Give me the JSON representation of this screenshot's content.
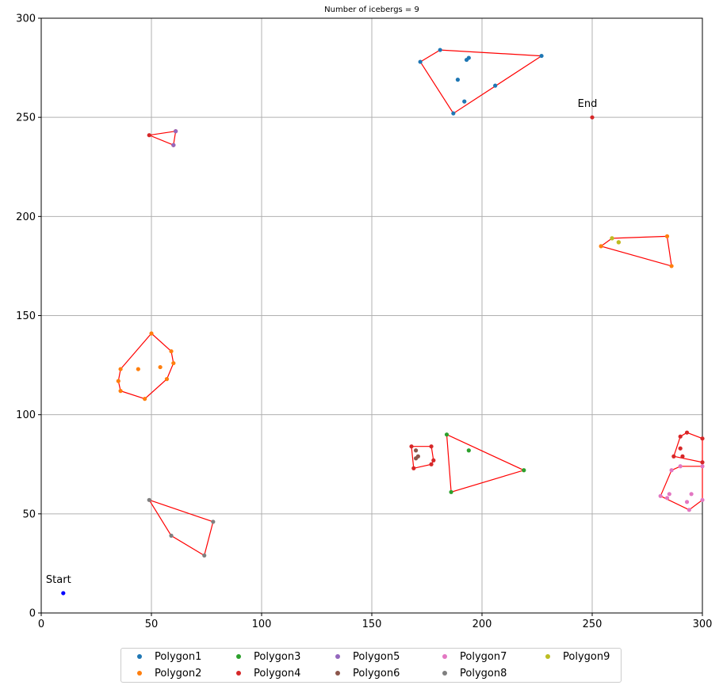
{
  "chart_data": {
    "type": "scatter",
    "title": "Number of icebergs = 9",
    "xlim": [
      0,
      300
    ],
    "ylim": [
      0,
      300
    ],
    "xticks": [
      0,
      50,
      100,
      150,
      200,
      250,
      300
    ],
    "yticks": [
      0,
      50,
      100,
      150,
      200,
      250,
      300
    ],
    "grid": true,
    "legend_position": "bottom",
    "annotations": [
      {
        "text": "Start",
        "x": 10,
        "y": 10,
        "color": "#0000ff"
      },
      {
        "text": "End",
        "x": 250,
        "y": 250,
        "color": "#d62728"
      }
    ],
    "hull_color": "#ff0000",
    "series": [
      {
        "name": "Polygon1",
        "color": "#1f77b4",
        "points": [
          [
            172,
            278
          ],
          [
            181,
            284
          ],
          [
            227,
            281
          ],
          [
            187,
            252
          ],
          [
            192,
            258
          ],
          [
            189,
            269
          ],
          [
            193,
            279
          ],
          [
            194,
            280
          ],
          [
            206,
            266
          ]
        ],
        "hull": [
          [
            172,
            278
          ],
          [
            181,
            284
          ],
          [
            227,
            281
          ],
          [
            187,
            252
          ]
        ]
      },
      {
        "name": "Polygon2",
        "color": "#ff7f0e",
        "points": [
          [
            50,
            141
          ],
          [
            59,
            132
          ],
          [
            60,
            126
          ],
          [
            57,
            118
          ],
          [
            47,
            108
          ],
          [
            36,
            112
          ],
          [
            35,
            117
          ],
          [
            36,
            123
          ],
          [
            44,
            123
          ],
          [
            54,
            124
          ]
        ],
        "hull": [
          [
            50,
            141
          ],
          [
            59,
            132
          ],
          [
            60,
            126
          ],
          [
            57,
            118
          ],
          [
            47,
            108
          ],
          [
            36,
            112
          ],
          [
            35,
            117
          ],
          [
            36,
            123
          ]
        ],
        "extra": [
          {
            "points": [
              [
                284,
                190
              ],
              [
                286,
                175
              ],
              [
                254,
                185
              ],
              [
                259,
                189
              ],
              [
                262,
                187
              ]
            ],
            "hull": [
              [
                259,
                189
              ],
              [
                284,
                190
              ],
              [
                286,
                175
              ],
              [
                254,
                185
              ]
            ]
          }
        ]
      },
      {
        "name": "Polygon3",
        "color": "#2ca02c",
        "points": [
          [
            184,
            90
          ],
          [
            219,
            72
          ],
          [
            186,
            61
          ],
          [
            194,
            82
          ]
        ],
        "hull": [
          [
            184,
            90
          ],
          [
            219,
            72
          ],
          [
            186,
            61
          ]
        ]
      },
      {
        "name": "Polygon4",
        "color": "#d62728",
        "points": [
          [
            49,
            241
          ],
          [
            61,
            243
          ],
          [
            60,
            236
          ],
          [
            168,
            84
          ],
          [
            177,
            84
          ],
          [
            178,
            77
          ],
          [
            177,
            75
          ],
          [
            169,
            73
          ],
          [
            290,
            89
          ],
          [
            293,
            91
          ],
          [
            300,
            88
          ],
          [
            300,
            76
          ],
          [
            287,
            79
          ],
          [
            291,
            79
          ],
          [
            290,
            83
          ]
        ],
        "hull_groups": [
          [
            [
              49,
              241
            ],
            [
              61,
              243
            ],
            [
              60,
              236
            ]
          ],
          [
            [
              168,
              84
            ],
            [
              177,
              84
            ],
            [
              178,
              77
            ],
            [
              177,
              75
            ],
            [
              169,
              73
            ]
          ],
          [
            [
              287,
              79
            ],
            [
              290,
              89
            ],
            [
              293,
              91
            ],
            [
              300,
              88
            ],
            [
              300,
              76
            ]
          ]
        ]
      },
      {
        "name": "Polygon5",
        "color": "#9467bd",
        "points": [
          [
            61,
            243
          ],
          [
            60,
            236
          ]
        ],
        "hull": []
      },
      {
        "name": "Polygon6",
        "color": "#8c564b",
        "points": [
          [
            170,
            82
          ],
          [
            171,
            79
          ],
          [
            170,
            78
          ]
        ],
        "hull": []
      },
      {
        "name": "Polygon7",
        "color": "#e377c2",
        "points": [
          [
            281,
            59
          ],
          [
            286,
            72
          ],
          [
            290,
            74
          ],
          [
            300,
            74
          ],
          [
            300,
            57
          ],
          [
            294,
            52
          ],
          [
            285,
            60
          ],
          [
            295,
            60
          ],
          [
            293,
            56
          ],
          [
            284,
            58
          ]
        ],
        "hull": [
          [
            281,
            59
          ],
          [
            286,
            72
          ],
          [
            290,
            74
          ],
          [
            300,
            74
          ],
          [
            300,
            57
          ],
          [
            294,
            52
          ]
        ]
      },
      {
        "name": "Polygon8",
        "color": "#7f7f7f",
        "points": [
          [
            49,
            57
          ],
          [
            78,
            46
          ],
          [
            74,
            29
          ],
          [
            59,
            39
          ]
        ],
        "hull": [
          [
            49,
            57
          ],
          [
            78,
            46
          ],
          [
            74,
            29
          ],
          [
            59,
            39
          ]
        ]
      },
      {
        "name": "Polygon9",
        "color": "#bcbd22",
        "points": [
          [
            262,
            187
          ],
          [
            259,
            189
          ]
        ],
        "hull": []
      }
    ]
  }
}
